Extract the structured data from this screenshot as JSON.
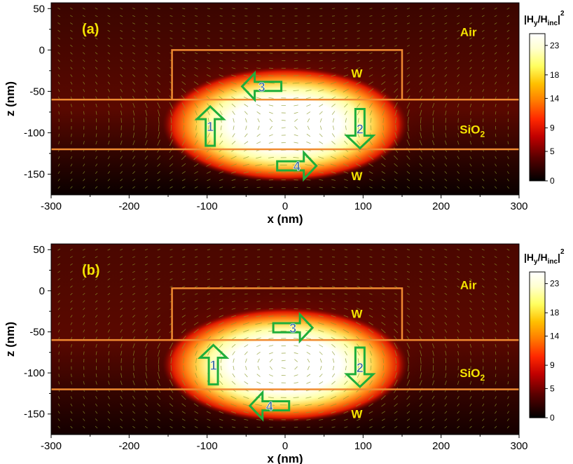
{
  "chart_data": [
    {
      "type": "heatmap",
      "panel_label": "(a)",
      "xlabel": "x (nm)",
      "ylabel": "z (nm)",
      "xlim": [
        -300,
        300
      ],
      "ylim": [
        -175,
        57
      ],
      "xticks": [
        "-300",
        "-200",
        "-100",
        "0",
        "100",
        "200",
        "300"
      ],
      "yticks": [
        "50",
        "0",
        "-50",
        "-100",
        "-150"
      ],
      "colorbar_title": "|Hᵧ/Hᵢₙ꜀|²",
      "colorbar_range": [
        0,
        25
      ],
      "colorbar_ticks": [
        "23",
        "18",
        "14",
        "9",
        "5",
        "0"
      ],
      "region_labels": [
        {
          "text": "Air",
          "x": 235,
          "z": 22
        },
        {
          "text": "W",
          "x": 92,
          "z": -28
        },
        {
          "text": "SiO₂",
          "x": 240,
          "z": -96
        },
        {
          "text": "W",
          "x": 92,
          "z": -152
        }
      ],
      "interfaces_z": [
        -60,
        -120
      ],
      "top_w_block": {
        "x_range": [
          -145,
          150
        ],
        "z_range": [
          -60,
          0
        ]
      },
      "current_arrows": [
        {
          "label": "1",
          "x": -96,
          "z": -92,
          "direction": "up"
        },
        {
          "label": "2",
          "x": 96,
          "z": -95,
          "direction": "down"
        },
        {
          "label": "3",
          "x": -30,
          "z": -44,
          "direction": "left"
        },
        {
          "label": "4",
          "x": 15,
          "z": -140,
          "direction": "right"
        }
      ],
      "field_peak": {
        "x": 0,
        "z": -90,
        "value": 25
      }
    },
    {
      "type": "heatmap",
      "panel_label": "(b)",
      "xlabel": "x (nm)",
      "ylabel": "z (nm)",
      "xlim": [
        -300,
        300
      ],
      "ylim": [
        -175,
        57
      ],
      "xticks": [
        "-300",
        "-200",
        "-100",
        "0",
        "100",
        "200",
        "300"
      ],
      "yticks": [
        "50",
        "0",
        "-50",
        "-100",
        "-150"
      ],
      "colorbar_title": "|Hᵧ/Hᵢₙ꜀|²",
      "colorbar_range": [
        0,
        25
      ],
      "colorbar_ticks": [
        "23",
        "18",
        "14",
        "9",
        "5",
        "0"
      ],
      "region_labels": [
        {
          "text": "Air",
          "x": 235,
          "z": 7
        },
        {
          "text": "W",
          "x": 92,
          "z": -28
        },
        {
          "text": "SiO₂",
          "x": 240,
          "z": -100
        },
        {
          "text": "W",
          "x": 92,
          "z": -150
        }
      ],
      "interfaces_z": [
        -60,
        -120
      ],
      "top_w_block": {
        "x_range": [
          -145,
          150
        ],
        "z_range": [
          -60,
          3
        ]
      },
      "current_arrows": [
        {
          "label": "1",
          "x": -92,
          "z": -90,
          "direction": "up"
        },
        {
          "label": "2",
          "x": 96,
          "z": -93,
          "direction": "down"
        },
        {
          "label": "3",
          "x": 10,
          "z": -45,
          "direction": "right"
        },
        {
          "label": "4",
          "x": -20,
          "z": -140,
          "direction": "left"
        }
      ],
      "field_peak": {
        "x": 0,
        "z": -90,
        "value": 25
      }
    }
  ]
}
